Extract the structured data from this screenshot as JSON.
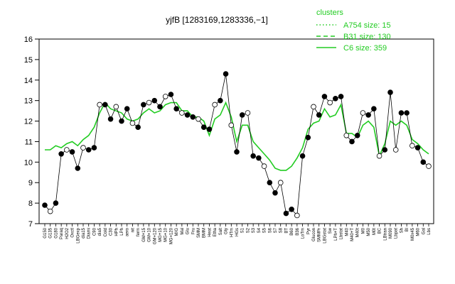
{
  "chart_data": {
    "type": "line",
    "title": "yjfB [1283169,1283336,−1]",
    "xlabel": "",
    "ylabel": "",
    "ylim": [
      7,
      16
    ],
    "yticks": [
      7,
      8,
      9,
      10,
      11,
      12,
      13,
      14,
      15,
      16
    ],
    "grid": false,
    "legend": {
      "title": "clusters",
      "placement": "top-right",
      "entries": [
        {
          "label": "A754 size: 15",
          "style": "dotted"
        },
        {
          "label": "B31 size: 130",
          "style": "dashed"
        },
        {
          "label": "C6 size: 359",
          "style": "solid"
        }
      ]
    },
    "x_tick_labels": [
      "G150",
      "G135",
      "G180",
      "Paraq",
      "H2O2",
      "Oxctl",
      "LBGexp",
      "dia15",
      "Diami",
      "C90",
      "dia5",
      "Cold",
      "C30",
      "HPh",
      "LPh",
      "aero",
      "nit",
      "ferm",
      "GM+15",
      "GM+10",
      "GM+120",
      "MG+15",
      "MG+10",
      "MG+120",
      "M/G",
      "Mal",
      "Glu",
      "Fru",
      "SMM",
      "BMM",
      "Heat",
      "Etha",
      "Salt",
      "Gly",
      "HTm",
      "HGs",
      "S1",
      "S2",
      "S3",
      "S4",
      "S5",
      "S6",
      "S7",
      "S8",
      "BT",
      "B60",
      "B36",
      "LoTm",
      "Pyr",
      "Glucon",
      "SMMPr",
      "LBGstat",
      "Sw",
      "LPh+T",
      "Lbstat",
      "M40",
      "M40+T",
      "M40t",
      "M0",
      "M50",
      "M0t",
      "BC",
      "LBtran",
      "M090",
      "Lbpat",
      "Sh",
      "Bl",
      "M0x45",
      "M60",
      "Gal",
      "Lbs"
    ],
    "series": [
      {
        "name": "",
        "style": "solid",
        "values": [
          10.6,
          10.6,
          10.8,
          10.7,
          10.9,
          11.0,
          10.8,
          11.1,
          11.3,
          11.7,
          12.4,
          12.9,
          12.6,
          12.5,
          12.4,
          12.1,
          12.0,
          12.1,
          12.4,
          12.6,
          12.4,
          12.5,
          12.8,
          12.9,
          12.9,
          12.5,
          12.5,
          12.2,
          12.2,
          12.0,
          11.3,
          12.1,
          12.3,
          12.9,
          12.2,
          11.0,
          11.8,
          11.8,
          11.0,
          10.7,
          10.4,
          10.1,
          9.7,
          9.6,
          9.6,
          9.8,
          10.2,
          10.7,
          11.6,
          11.9,
          12.0,
          12.6,
          12.2,
          12.3,
          12.8,
          11.4,
          11.4,
          11.2,
          11.8,
          12.0,
          11.7,
          10.3,
          10.9,
          12.0,
          11.8,
          12.0,
          11.8,
          11.1,
          10.9,
          10.6,
          10.4
        ]
      },
      {
        "name": "",
        "style": "dashed",
        "values": [
          null,
          null,
          null,
          null,
          null,
          null,
          null,
          null,
          null,
          null,
          null,
          null,
          null,
          null,
          null,
          null,
          null,
          null,
          null,
          null,
          null,
          null,
          null,
          null,
          null,
          null,
          null,
          null,
          null,
          null,
          null,
          null,
          null,
          null,
          null,
          null,
          null,
          null,
          null,
          null,
          null,
          null,
          null,
          null,
          null,
          null,
          null,
          null,
          null,
          null,
          null,
          null,
          null,
          null,
          null,
          null,
          null,
          null,
          null,
          null,
          null,
          null,
          null,
          null,
          null,
          null,
          null,
          null,
          null,
          null,
          null
        ]
      },
      {
        "name": "",
        "style": "points",
        "values": [
          7.9,
          7.6,
          8.0,
          10.4,
          10.6,
          10.5,
          9.7,
          10.7,
          10.6,
          10.7,
          12.8,
          12.8,
          12.1,
          12.7,
          12.0,
          12.6,
          11.9,
          11.7,
          12.8,
          12.9,
          13.0,
          12.7,
          13.2,
          13.3,
          12.6,
          12.4,
          12.3,
          12.2,
          12.1,
          11.7,
          11.6,
          12.8,
          13.0,
          14.3,
          11.8,
          10.5,
          12.3,
          12.4,
          10.3,
          10.2,
          9.8,
          9.0,
          8.5,
          9.0,
          7.5,
          7.7,
          7.4,
          10.3,
          11.2,
          12.7,
          12.3,
          13.2,
          12.9,
          13.1,
          13.2,
          11.3,
          11.0,
          11.3,
          12.4,
          12.3,
          12.6,
          10.3,
          10.6,
          13.4,
          10.6,
          12.4,
          12.4,
          10.8,
          10.7,
          10.0,
          9.8
        ]
      }
    ]
  }
}
